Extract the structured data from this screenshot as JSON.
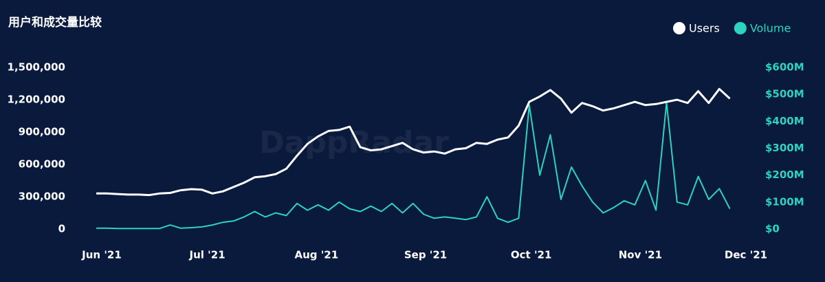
{
  "chart_data": {
    "type": "line",
    "title": "用户和成交量比较",
    "watermark": "DappRadar",
    "x": [
      0,
      3,
      6,
      9,
      12,
      15,
      18,
      21,
      24,
      27,
      30,
      33,
      36,
      39,
      42,
      45,
      48,
      51,
      54,
      57,
      60,
      63,
      66,
      69,
      72,
      75,
      78,
      81,
      84,
      87,
      90,
      93,
      96,
      99,
      102,
      105,
      108,
      111,
      114,
      117,
      120,
      123,
      126,
      129,
      132,
      135,
      138,
      141,
      144,
      147,
      150,
      153,
      156,
      159,
      162,
      165,
      168,
      171,
      174,
      177,
      180
    ],
    "xlim": [
      0,
      183
    ],
    "xticks": [
      {
        "value": 0,
        "label": "Jun '21"
      },
      {
        "value": 30,
        "label": "Jul '21"
      },
      {
        "value": 61,
        "label": "Aug '21"
      },
      {
        "value": 92,
        "label": "Sep '21"
      },
      {
        "value": 122,
        "label": "Oct '21"
      },
      {
        "value": 153,
        "label": "Nov '21"
      },
      {
        "value": 183,
        "label": "Dec '21"
      }
    ],
    "ylim": [
      0,
      1500000
    ],
    "yticks": [
      0,
      {
        "value": 300000,
        "label": "300,000"
      },
      {
        "value": 600000,
        "label": "600,000"
      },
      {
        "value": 900000,
        "label": "900,000"
      },
      {
        "value": 1200000,
        "label": "1,200,000"
      },
      {
        "value": 1500000,
        "label": "1,500,000"
      }
    ],
    "y2lim": [
      0,
      600
    ],
    "y2ticks": [
      {
        "value": 0,
        "label": "$0"
      },
      {
        "value": 100,
        "label": "$100M"
      },
      {
        "value": 200,
        "label": "$200M"
      },
      {
        "value": 300,
        "label": "$300M"
      },
      {
        "value": 400,
        "label": "$400M"
      },
      {
        "value": 500,
        "label": "$500M"
      },
      {
        "value": 600,
        "label": "$600M"
      }
    ],
    "legend": "top-right",
    "series": [
      {
        "name": "Users",
        "color": "#ffffff",
        "values": [
          330000,
          330000,
          325000,
          320000,
          320000,
          315000,
          330000,
          335000,
          360000,
          370000,
          365000,
          330000,
          350000,
          390000,
          430000,
          480000,
          490000,
          510000,
          560000,
          680000,
          790000,
          860000,
          910000,
          920000,
          950000,
          760000,
          730000,
          740000,
          770000,
          800000,
          740000,
          710000,
          720000,
          700000,
          740000,
          750000,
          800000,
          790000,
          830000,
          850000,
          960000,
          1180000,
          1230000,
          1290000,
          1210000,
          1080000,
          1170000,
          1140000,
          1100000,
          1120000,
          1150000,
          1180000,
          1150000,
          1160000,
          1180000,
          1200000,
          1170000,
          1280000,
          1170000,
          1300000,
          1210000
        ]
      },
      {
        "name": "Volume",
        "color": "#2ed3c0",
        "axis": "y2",
        "values": [
          3,
          3,
          2,
          2,
          2,
          2,
          2,
          15,
          3,
          5,
          8,
          15,
          25,
          30,
          45,
          65,
          45,
          60,
          50,
          95,
          70,
          90,
          70,
          100,
          75,
          65,
          85,
          65,
          95,
          60,
          95,
          55,
          40,
          45,
          40,
          35,
          45,
          120,
          40,
          25,
          40,
          460,
          200,
          350,
          110,
          230,
          160,
          100,
          60,
          80,
          105,
          90,
          180,
          70,
          470,
          100,
          90,
          195,
          110,
          150,
          75
        ]
      }
    ]
  }
}
